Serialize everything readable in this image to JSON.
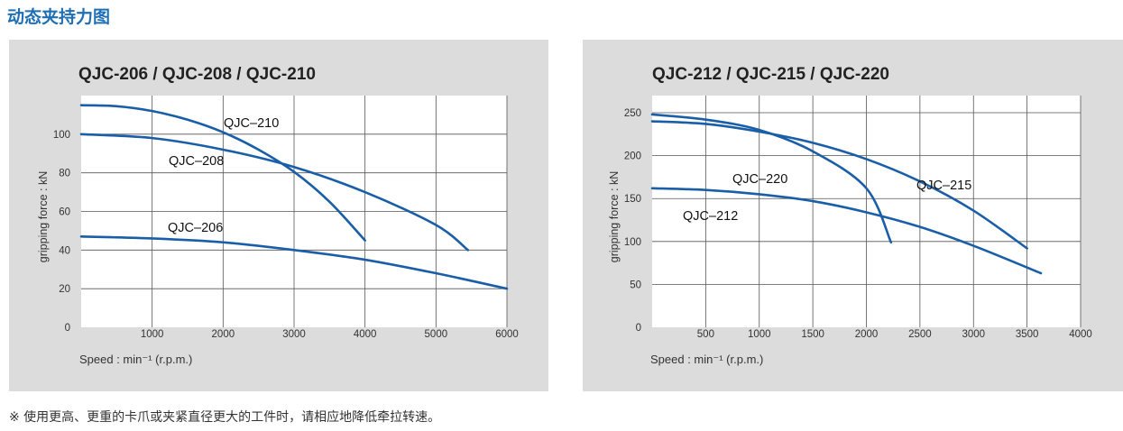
{
  "page_title": "动态夹持力图",
  "footnote": "※ 使用更高、更重的卡爪或夹紧直径更大的工件时，请相应地降低牵拉转速。",
  "chart_data": [
    {
      "type": "line",
      "title": "QJC-206 / QJC-208 / QJC-210",
      "xlabel": "Speed : min⁻¹ (r.p.m.)",
      "ylabel": "gripping force : kN",
      "xlim": [
        0,
        6000
      ],
      "ylim": [
        0,
        120
      ],
      "xticks": [
        "1000",
        "2000",
        "3000",
        "4000",
        "5000",
        "6000"
      ],
      "yticks": [
        "0",
        "20",
        "40",
        "60",
        "80",
        "100"
      ],
      "grid": true,
      "line_color": "#1a5ea8",
      "series": [
        {
          "name": "QJC–210",
          "x": [
            0,
            500,
            1000,
            1500,
            2000,
            2500,
            3000,
            3500,
            4000
          ],
          "y": [
            115,
            114.5,
            112,
            107.5,
            101,
            92,
            80.5,
            65,
            45
          ]
        },
        {
          "name": "QJC–208",
          "x": [
            0,
            1000,
            2000,
            3000,
            4000,
            5000,
            5450
          ],
          "y": [
            100,
            98,
            92,
            83,
            70,
            53,
            40
          ]
        },
        {
          "name": "QJC–206",
          "x": [
            0,
            1000,
            2000,
            3000,
            4000,
            5000,
            6000
          ],
          "y": [
            47,
            46,
            44,
            40,
            35,
            28,
            20
          ]
        }
      ]
    },
    {
      "type": "line",
      "title": "QJC-212 / QJC-215 / QJC-220",
      "xlabel": "Speed : min⁻¹ (r.p.m.)",
      "ylabel": "gripping force : kN",
      "xlim": [
        0,
        4000
      ],
      "ylim": [
        0,
        270
      ],
      "xticks": [
        "500",
        "1000",
        "1500",
        "2000",
        "2500",
        "3000",
        "3500",
        "4000"
      ],
      "yticks": [
        "0",
        "50",
        "100",
        "150",
        "200",
        "250"
      ],
      "grid": true,
      "line_color": "#1a5ea8",
      "series": [
        {
          "name": "QJC–220",
          "x": [
            0,
            500,
            1000,
            1500,
            2000,
            2230
          ],
          "y": [
            248,
            242,
            230,
            205,
            162,
            99
          ]
        },
        {
          "name": "QJC–215",
          "x": [
            0,
            500,
            1000,
            1500,
            2000,
            2500,
            3000,
            3500
          ],
          "y": [
            240,
            237,
            228,
            215,
            196,
            170,
            136,
            92
          ]
        },
        {
          "name": "QJC–212",
          "x": [
            0,
            500,
            1000,
            1500,
            2000,
            2500,
            3000,
            3630
          ],
          "y": [
            162,
            160,
            155,
            147,
            134,
            117,
            95,
            63
          ]
        }
      ]
    }
  ]
}
